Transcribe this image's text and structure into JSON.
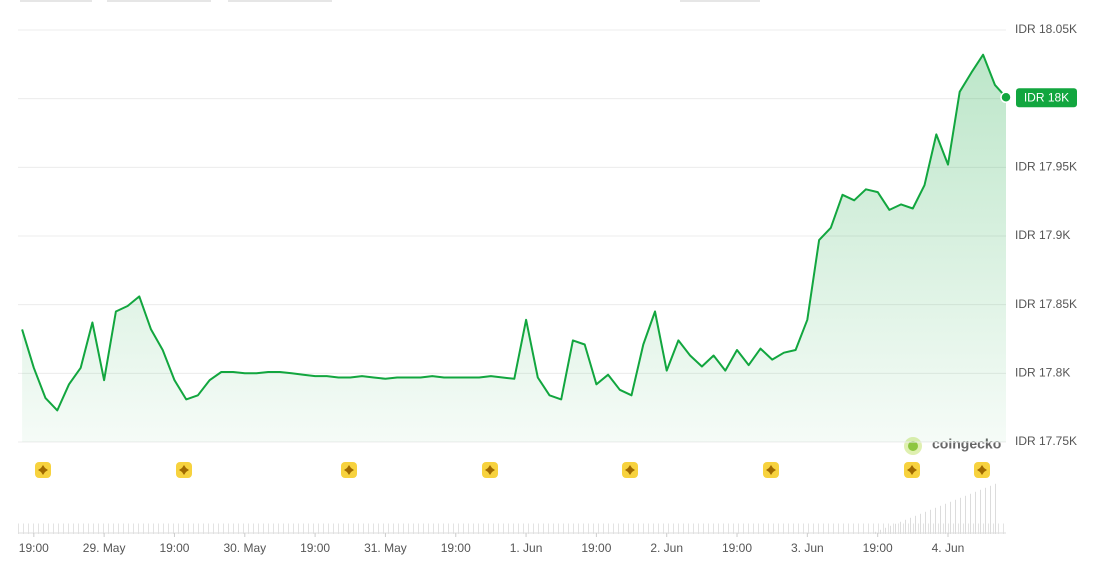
{
  "chart_data": {
    "type": "line",
    "color": "#12a63f",
    "grid": true,
    "x": [
      -2,
      0,
      2,
      4,
      6,
      8,
      10,
      12,
      14,
      16,
      18,
      20,
      22,
      24,
      26,
      28,
      30,
      32,
      34,
      36,
      38,
      40,
      42,
      44,
      46,
      48,
      50,
      52,
      54,
      56,
      58,
      60,
      62,
      64,
      66,
      68,
      70,
      72,
      74,
      76,
      78,
      80,
      82,
      84,
      86,
      88,
      90,
      92,
      94,
      96,
      98,
      100,
      102,
      104,
      106,
      108,
      110,
      112,
      114,
      116,
      118,
      120,
      122,
      124,
      126,
      128,
      130,
      132,
      134,
      136,
      138,
      140,
      142,
      144,
      146,
      148,
      150,
      152,
      154,
      156,
      158,
      160,
      162,
      164,
      165.9
    ],
    "values": [
      17832,
      17804,
      17782,
      17773,
      17792,
      17804,
      17837,
      17795,
      17845,
      17849,
      17856,
      17832,
      17817,
      17795,
      17781,
      17784,
      17795,
      17801,
      17801,
      17800,
      17800,
      17801,
      17801,
      17800,
      17799,
      17798,
      17798,
      17797,
      17797,
      17798,
      17797,
      17796,
      17797,
      17797,
      17797,
      17798,
      17797,
      17797,
      17797,
      17797,
      17798,
      17797,
      17796,
      17839,
      17797,
      17784,
      17781,
      17824,
      17821,
      17792,
      17799,
      17788,
      17784,
      17821,
      17845,
      17802,
      17824,
      17813,
      17805,
      17813,
      17802,
      17817,
      17806,
      17818,
      17810,
      17815,
      17817,
      17839,
      17897,
      17906,
      17930,
      17926,
      17934,
      17932,
      17919,
      17923,
      17920,
      17937,
      17974,
      17952,
      18005,
      18019,
      18032,
      18010,
      18001
    ],
    "value_labels": [
      null,
      null,
      null,
      null,
      null,
      null,
      null,
      null,
      null,
      null,
      null,
      null,
      null,
      null,
      null,
      null,
      null,
      null,
      null,
      null,
      null,
      null,
      null,
      null,
      null,
      null,
      null,
      null,
      null,
      null,
      null,
      null,
      null,
      null,
      null,
      null,
      null,
      null,
      null,
      null,
      null,
      null,
      null,
      null,
      null,
      null,
      null,
      null,
      null,
      null,
      null,
      null,
      null,
      null,
      null,
      null,
      null,
      null,
      null,
      null,
      null,
      null,
      null,
      null,
      null,
      null,
      null,
      null,
      null,
      null,
      null,
      null,
      null,
      null,
      null,
      null,
      null,
      null,
      null,
      null,
      null,
      null,
      null,
      null,
      "IDR 18K"
    ],
    "xlim": [
      -2.7,
      165.9
    ],
    "xticks": [
      {
        "value": 0,
        "label": "19:00"
      },
      {
        "value": 12,
        "label": "29. May"
      },
      {
        "value": 24,
        "label": "19:00"
      },
      {
        "value": 36,
        "label": "30. May"
      },
      {
        "value": 48,
        "label": "19:00"
      },
      {
        "value": 60,
        "label": "31. May"
      },
      {
        "value": 72,
        "label": "19:00"
      },
      {
        "value": 84,
        "label": "1. Jun"
      },
      {
        "value": 96,
        "label": "19:00"
      },
      {
        "value": 108,
        "label": "2. Jun"
      },
      {
        "value": 120,
        "label": "19:00"
      },
      {
        "value": 132,
        "label": "3. Jun"
      },
      {
        "value": 144,
        "label": "19:00"
      },
      {
        "value": 156,
        "label": "4. Jun"
      }
    ],
    "ylim": [
      17750,
      18050
    ],
    "yticks": [
      {
        "value": 17750,
        "label": "IDR 17.75K"
      },
      {
        "value": 17800,
        "label": "IDR 17.8K"
      },
      {
        "value": 17850,
        "label": "IDR 17.85K"
      },
      {
        "value": 17900,
        "label": "IDR 17.9K"
      },
      {
        "value": 17950,
        "label": "IDR 17.95K"
      },
      {
        "value": 18000,
        "label": "IDR 18K"
      },
      {
        "value": 18050,
        "label": "IDR 18.05K"
      }
    ],
    "watermark": "coingecko"
  }
}
